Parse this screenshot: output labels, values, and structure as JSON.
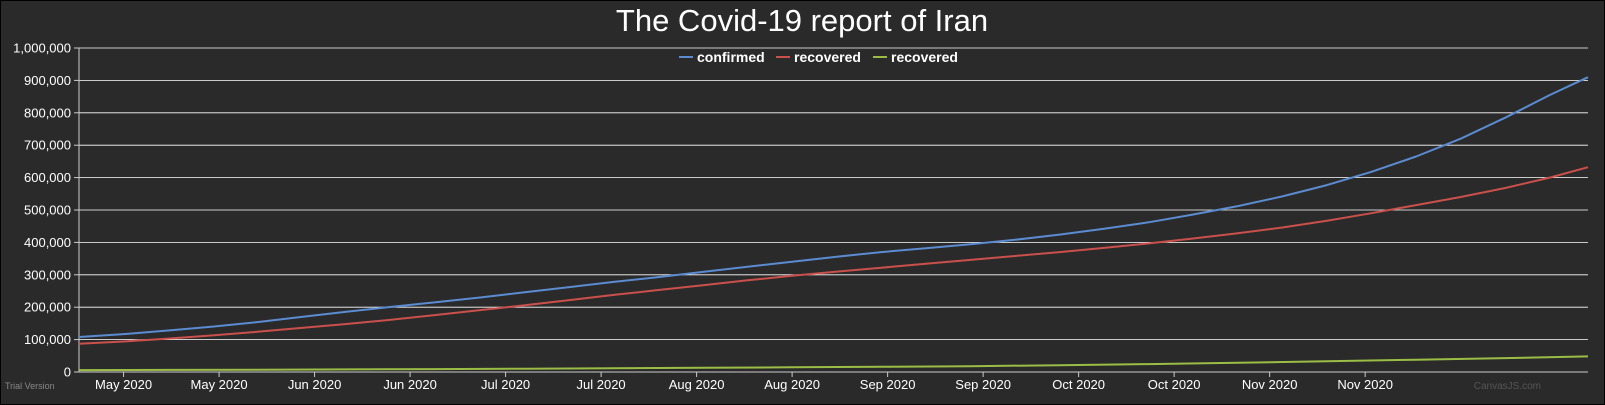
{
  "chart_data": {
    "type": "line",
    "title": "The Covid-19 report of Iran",
    "xlabel": "",
    "ylabel": "",
    "ylim": [
      0,
      1000000
    ],
    "yticks": [
      "0",
      "100,000",
      "200,000",
      "300,000",
      "400,000",
      "500,000",
      "600,000",
      "700,000",
      "800,000",
      "900,000",
      "1,000,000"
    ],
    "ytick_values": [
      0,
      100000,
      200000,
      300000,
      400000,
      500000,
      600000,
      700000,
      800000,
      900000,
      1000000
    ],
    "xlim_days": [
      0,
      212
    ],
    "x_ticks": [
      {
        "day": 7,
        "label": "May 2020"
      },
      {
        "day": 22,
        "label": "May 2020"
      },
      {
        "day": 37,
        "label": "Jun 2020"
      },
      {
        "day": 52,
        "label": "Jun 2020"
      },
      {
        "day": 67,
        "label": "Jul 2020"
      },
      {
        "day": 82,
        "label": "Jul 2020"
      },
      {
        "day": 97,
        "label": "Aug 2020"
      },
      {
        "day": 112,
        "label": "Aug 2020"
      },
      {
        "day": 127,
        "label": "Sep 2020"
      },
      {
        "day": 142,
        "label": "Sep 2020"
      },
      {
        "day": 157,
        "label": "Oct 2020"
      },
      {
        "day": 172,
        "label": "Oct 2020"
      },
      {
        "day": 187,
        "label": "Nov 2020"
      },
      {
        "day": 202,
        "label": "Nov 2020"
      }
    ],
    "legend_position": "top-center",
    "grid": true,
    "series": [
      {
        "name": "confirmed",
        "color": "#5b8bd0",
        "points": [
          [
            0,
            108000
          ],
          [
            7,
            117000
          ],
          [
            14,
            128000
          ],
          [
            21,
            140000
          ],
          [
            28,
            154000
          ],
          [
            35,
            170000
          ],
          [
            42,
            186000
          ],
          [
            49,
            201000
          ],
          [
            56,
            215000
          ],
          [
            63,
            230000
          ],
          [
            70,
            246000
          ],
          [
            77,
            262000
          ],
          [
            84,
            278000
          ],
          [
            91,
            293000
          ],
          [
            98,
            309000
          ],
          [
            105,
            325000
          ],
          [
            112,
            340000
          ],
          [
            119,
            356000
          ],
          [
            126,
            370000
          ],
          [
            133,
            382000
          ],
          [
            140,
            394000
          ],
          [
            147,
            408000
          ],
          [
            154,
            424000
          ],
          [
            161,
            442000
          ],
          [
            168,
            462000
          ],
          [
            175,
            486000
          ],
          [
            182,
            512000
          ],
          [
            189,
            542000
          ],
          [
            196,
            577000
          ],
          [
            203,
            618000
          ],
          [
            210,
            665000
          ],
          [
            217,
            720000
          ],
          [
            224,
            785000
          ],
          [
            231,
            855000
          ],
          [
            237,
            910000
          ]
        ]
      },
      {
        "name": "recovered",
        "color": "#c9504b",
        "points": [
          [
            0,
            87000
          ],
          [
            7,
            94000
          ],
          [
            14,
            103000
          ],
          [
            21,
            113000
          ],
          [
            28,
            124000
          ],
          [
            35,
            136000
          ],
          [
            42,
            148000
          ],
          [
            49,
            161000
          ],
          [
            56,
            176000
          ],
          [
            63,
            191000
          ],
          [
            70,
            206000
          ],
          [
            77,
            222000
          ],
          [
            84,
            238000
          ],
          [
            91,
            253000
          ],
          [
            98,
            268000
          ],
          [
            105,
            283000
          ],
          [
            112,
            297000
          ],
          [
            119,
            310000
          ],
          [
            126,
            322000
          ],
          [
            133,
            334000
          ],
          [
            140,
            346000
          ],
          [
            147,
            358000
          ],
          [
            154,
            370000
          ],
          [
            161,
            383000
          ],
          [
            168,
            397000
          ],
          [
            175,
            412000
          ],
          [
            182,
            428000
          ],
          [
            189,
            446000
          ],
          [
            196,
            467000
          ],
          [
            203,
            490000
          ],
          [
            210,
            515000
          ],
          [
            217,
            540000
          ],
          [
            224,
            568000
          ],
          [
            231,
            600000
          ],
          [
            237,
            632000
          ]
        ]
      },
      {
        "name": "recovered",
        "color": "#9bbd45",
        "points": [
          [
            0,
            6000
          ],
          [
            14,
            6500
          ],
          [
            28,
            7200
          ],
          [
            42,
            8000
          ],
          [
            56,
            9000
          ],
          [
            70,
            10200
          ],
          [
            84,
            11500
          ],
          [
            98,
            13000
          ],
          [
            112,
            14500
          ],
          [
            126,
            16000
          ],
          [
            140,
            18000
          ],
          [
            154,
            21000
          ],
          [
            168,
            24500
          ],
          [
            182,
            28500
          ],
          [
            196,
            33000
          ],
          [
            210,
            38000
          ],
          [
            224,
            43000
          ],
          [
            237,
            48000
          ]
        ]
      }
    ]
  },
  "watermark": {
    "trial": "Trial Version",
    "credit": "CanvasJS.com"
  }
}
